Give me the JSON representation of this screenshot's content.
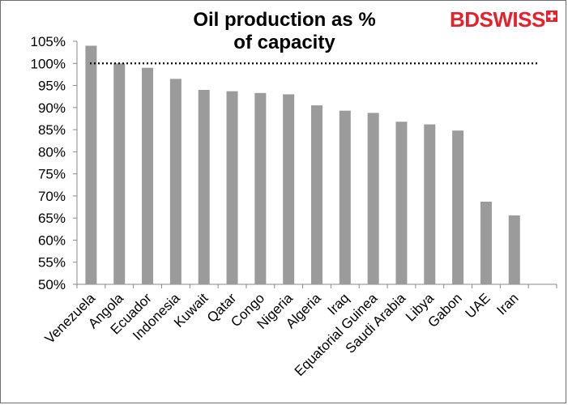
{
  "chart_data": {
    "type": "bar",
    "title_lines": [
      "Oil production as %",
      "of capacity"
    ],
    "categories": [
      "Venezuela",
      "Angola",
      "Ecuador",
      "Indonesia",
      "Kuwait",
      "Qatar",
      "Congo",
      "Nigeria",
      "Algeria",
      "Iraq",
      "Equatorial Guinea",
      "Saudi Arabia",
      "Libya",
      "Gabon",
      "UAE",
      "Iran"
    ],
    "values": [
      104,
      100,
      99,
      96.5,
      94,
      93.7,
      93.3,
      93,
      90.5,
      89.3,
      88.8,
      86.8,
      86.2,
      84.8,
      68.7,
      65.6
    ],
    "ylim": [
      50,
      105
    ],
    "yticks": [
      50,
      55,
      60,
      65,
      70,
      75,
      80,
      85,
      90,
      95,
      100,
      105
    ],
    "ytick_labels": [
      "50%",
      "55%",
      "60%",
      "65%",
      "70%",
      "75%",
      "80%",
      "85%",
      "90%",
      "95%",
      "100%",
      "105%"
    ],
    "reference_line": 100,
    "bar_color": "#9b9b9b",
    "grid": false
  },
  "brand": {
    "name": "BDSWISS",
    "color": "#e8202a"
  }
}
